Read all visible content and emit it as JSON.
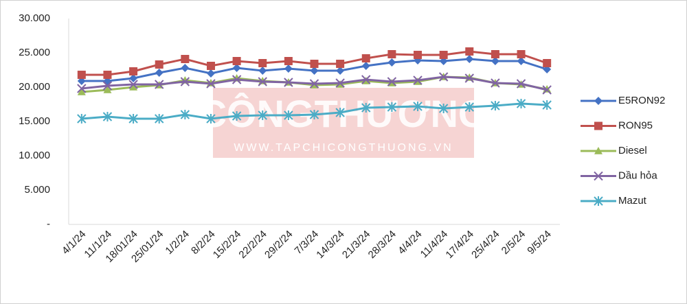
{
  "chart_data": {
    "type": "line",
    "categories": [
      "4/1/24",
      "11/1/24",
      "18/01/24",
      "25/01/24",
      "1/2/24",
      "8/2/24",
      "15/2/24",
      "22/2/24",
      "29/2/24",
      "7/3/24",
      "14/3/24",
      "21/3/24",
      "28/3/24",
      "4/4/24",
      "11/4/24",
      "17/4/24",
      "25/4/24",
      "2/5/24",
      "9/5/24"
    ],
    "series": [
      {
        "name": "E5RON92",
        "color": "#4472c4",
        "marker": "diamond",
        "values": [
          20900,
          20900,
          21300,
          22100,
          22800,
          22000,
          22800,
          22400,
          22700,
          22400,
          22400,
          23100,
          23600,
          23900,
          23800,
          24100,
          23800,
          23800,
          22600
        ]
      },
      {
        "name": "RON95",
        "color": "#c0504d",
        "marker": "square",
        "values": [
          21800,
          21800,
          22300,
          23300,
          24100,
          23100,
          23800,
          23500,
          23800,
          23400,
          23400,
          24200,
          24800,
          24700,
          24700,
          25200,
          24800,
          24800,
          23500
        ]
      },
      {
        "name": "Diesel",
        "color": "#9bbb59",
        "marker": "triangle",
        "values": [
          19300,
          19600,
          20000,
          20300,
          21000,
          20600,
          21300,
          20900,
          20700,
          20300,
          20400,
          20900,
          20600,
          20800,
          21500,
          21400,
          20600,
          20400,
          19700
        ]
      },
      {
        "name": "Dầu hỏa",
        "color": "#8064a2",
        "marker": "x",
        "values": [
          19800,
          20200,
          20400,
          20400,
          20800,
          20500,
          21100,
          20800,
          20700,
          20500,
          20600,
          21100,
          20800,
          21000,
          21500,
          21300,
          20600,
          20500,
          19600
        ]
      },
      {
        "name": "Mazut",
        "color": "#4bacc6",
        "marker": "star",
        "values": [
          15400,
          15700,
          15400,
          15400,
          16000,
          15400,
          15800,
          15900,
          15900,
          16000,
          16300,
          17000,
          17100,
          17200,
          16900,
          17100,
          17300,
          17600,
          17400
        ]
      }
    ],
    "ylim": [
      0,
      30000
    ],
    "yticks": [
      {
        "value": 0,
        "label": "-"
      },
      {
        "value": 5000,
        "label": "5.000"
      },
      {
        "value": 10000,
        "label": "10.000"
      },
      {
        "value": 15000,
        "label": "15.000"
      },
      {
        "value": 20000,
        "label": "20.000"
      },
      {
        "value": 25000,
        "label": "25.000"
      },
      {
        "value": 30000,
        "label": "30.000"
      }
    ],
    "grid": false,
    "legend": "right",
    "watermark": [
      "CÔNGTHƯƠNG",
      "WWW.TAPCHICONGTHUONG.VN"
    ]
  }
}
